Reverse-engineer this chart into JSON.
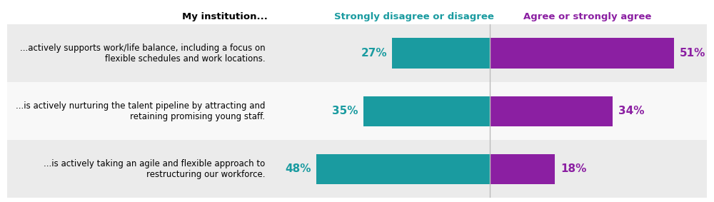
{
  "title_left": "My institution...",
  "header_disagree": "Strongly disagree or disagree",
  "header_agree": "Agree or strongly agree",
  "categories": [
    "...actively supports work/life balance, including a focus on\nflexible schedules and work locations.",
    "...is actively nurturing the talent pipeline by attracting and\nretaining promising young staff.",
    "...is actively taking an agile and flexible approach to\nrestructuring our workforce."
  ],
  "disagree_values": [
    27,
    35,
    48
  ],
  "agree_values": [
    51,
    34,
    18
  ],
  "teal_color": "#1A9BA0",
  "purple_color": "#8B1FA2",
  "header_disagree_color": "#1A9BA0",
  "header_agree_color": "#8B1FA2",
  "fig_bg_color": "#FFFFFF",
  "row_bg_odd": "#EBEBEB",
  "row_bg_even": "#F8F8F8",
  "bar_scale": 0.55,
  "center_divider_color": "#BBBBBB",
  "label_fontsize": 8.5,
  "header_fontsize": 9.5,
  "pct_fontsize": 11,
  "cat_fontsize": 8.5
}
